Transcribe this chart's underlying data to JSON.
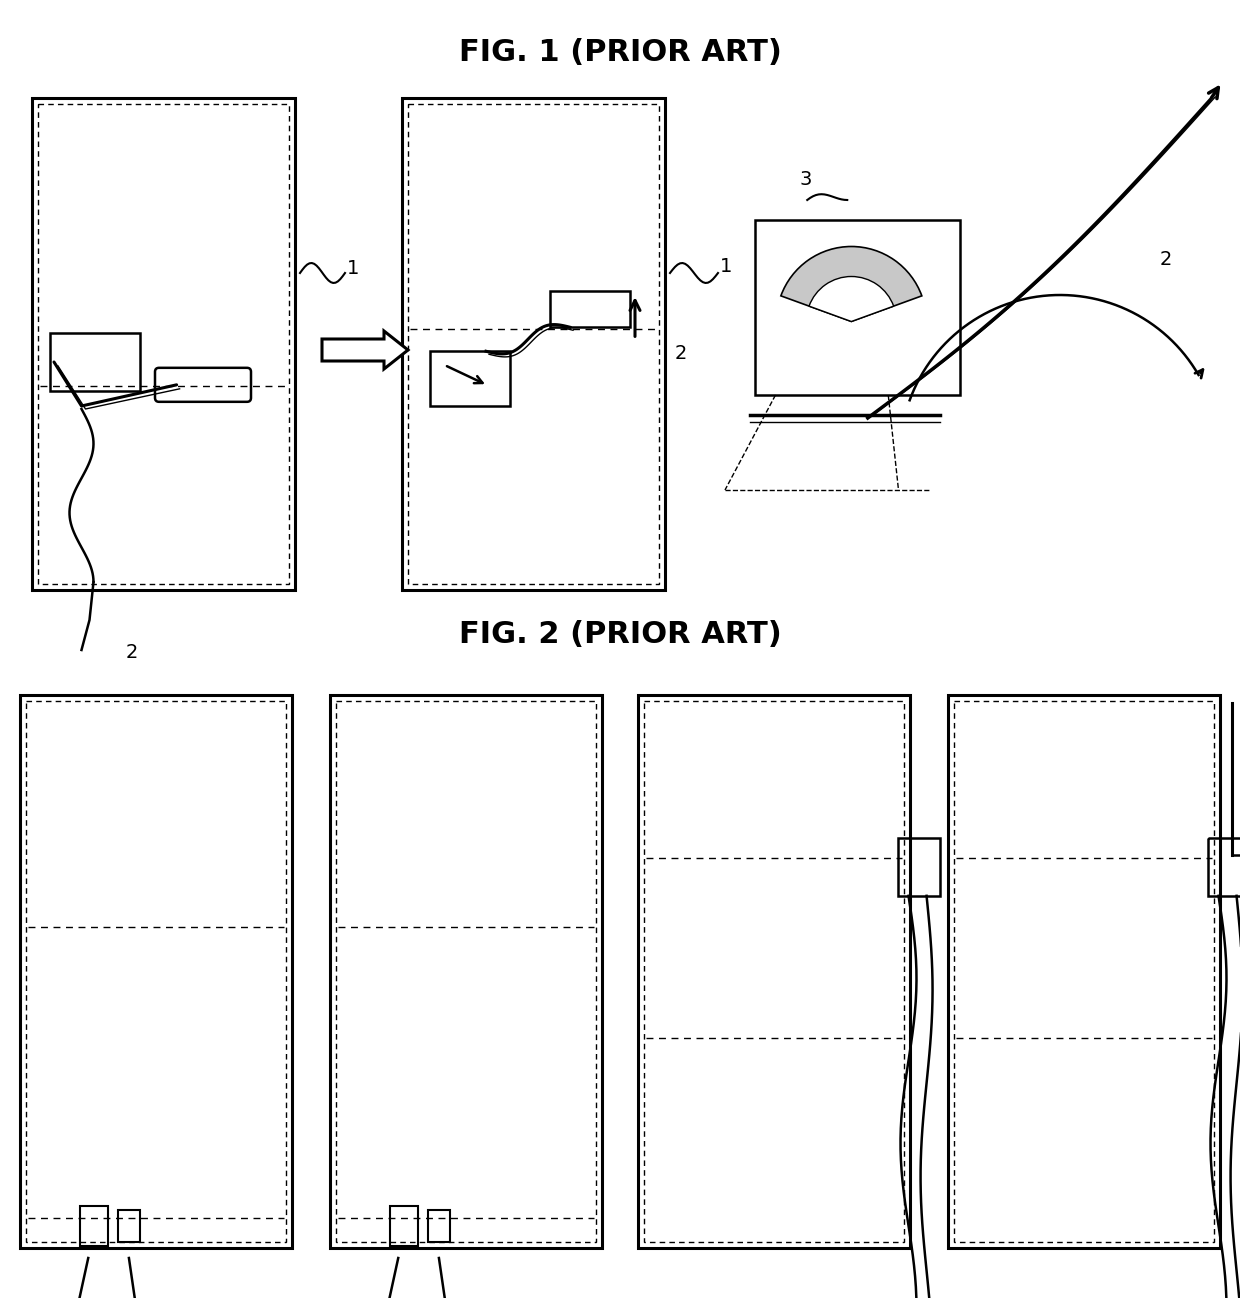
{
  "title1": "FIG. 1 (PRIOR ART)",
  "title2": "FIG. 2 (PRIOR ART)",
  "bg_color": "#ffffff"
}
